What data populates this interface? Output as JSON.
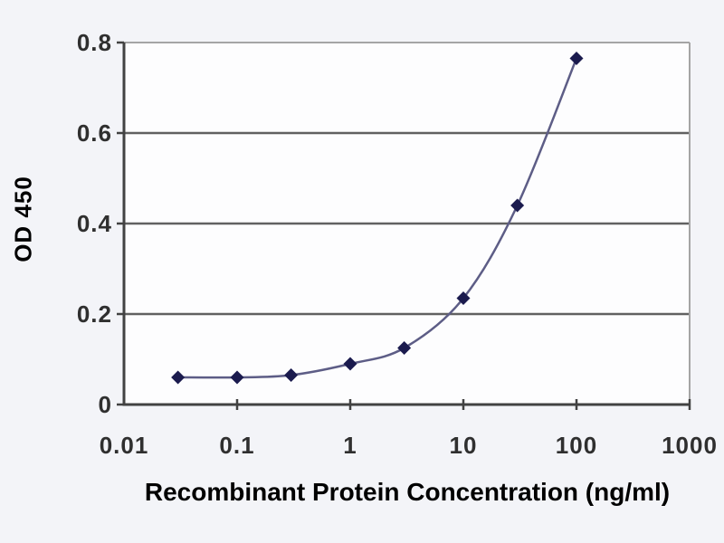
{
  "chart_data": {
    "type": "line",
    "title": "",
    "xlabel": "Recombinant Protein Concentration (ng/ml)",
    "ylabel": "OD 450",
    "x_scale": "log",
    "xlim": [
      0.01,
      1000
    ],
    "ylim": [
      0,
      0.8
    ],
    "grid": "horizontal",
    "legend": "none",
    "marker": "diamond",
    "x": [
      0.03,
      0.1,
      0.3,
      1,
      3,
      10,
      30,
      100
    ],
    "series": [
      {
        "name": "OD 450",
        "values": [
          0.06,
          0.06,
          0.065,
          0.09,
          0.125,
          0.235,
          0.44,
          0.765
        ]
      }
    ],
    "x_ticks": [
      0.01,
      0.1,
      1,
      10,
      100,
      1000
    ],
    "x_tick_labels": [
      "0.01",
      "0.1",
      "1",
      "10",
      "100",
      "1000"
    ],
    "y_ticks": [
      0,
      0.2,
      0.4,
      0.6,
      0.8
    ],
    "y_tick_labels": [
      "0",
      "0.2",
      "0.4",
      "0.6",
      "0.8"
    ],
    "colors": {
      "line": "#5d5d86",
      "marker": "#1b1b4e",
      "grid": "#616161",
      "frame": "#a5a5a5",
      "axis": "#424242",
      "text": "#2f2f2f",
      "plot_bg": "#fdfdfe",
      "page_bg": "#f3f4f8"
    }
  }
}
